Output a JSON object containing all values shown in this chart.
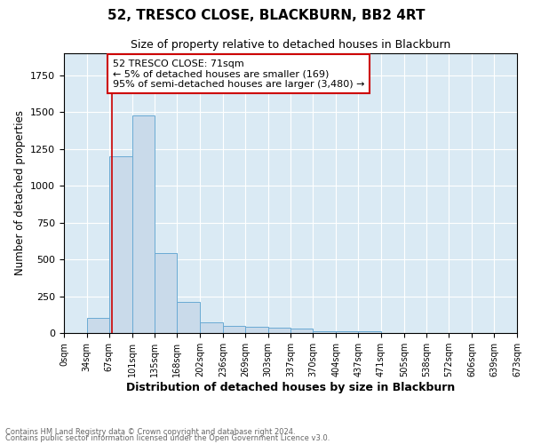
{
  "title1": "52, TRESCO CLOSE, BLACKBURN, BB2 4RT",
  "title2": "Size of property relative to detached houses in Blackburn",
  "xlabel": "Distribution of detached houses by size in Blackburn",
  "ylabel": "Number of detached properties",
  "footnote1": "Contains HM Land Registry data © Crown copyright and database right 2024.",
  "footnote2": "Contains public sector information licensed under the Open Government Licence v3.0.",
  "bar_edges": [
    0,
    34,
    67,
    101,
    135,
    168,
    202,
    236,
    269,
    303,
    337,
    370,
    404,
    437,
    471,
    505,
    538,
    572,
    606,
    639,
    673
  ],
  "bar_heights": [
    0,
    100,
    1200,
    1480,
    540,
    210,
    75,
    50,
    45,
    35,
    28,
    15,
    10,
    15,
    0,
    0,
    0,
    0,
    0,
    0
  ],
  "bar_color": "#c9daea",
  "bar_edgecolor": "#6aaad4",
  "grid_color": "#ffffff",
  "bg_color": "#daeaf4",
  "red_line_x": 71,
  "annotation_line1": "52 TRESCO CLOSE: 71sqm",
  "annotation_line2": "← 5% of detached houses are smaller (169)",
  "annotation_line3": "95% of semi-detached houses are larger (3,480) →",
  "annotation_box_color": "#ffffff",
  "annotation_border_color": "#cc0000",
  "ylim": [
    0,
    1900
  ],
  "xlim": [
    0,
    673
  ],
  "tick_labels": [
    "0sqm",
    "34sqm",
    "67sqm",
    "101sqm",
    "135sqm",
    "168sqm",
    "202sqm",
    "236sqm",
    "269sqm",
    "303sqm",
    "337sqm",
    "370sqm",
    "404sqm",
    "437sqm",
    "471sqm",
    "505sqm",
    "538sqm",
    "572sqm",
    "606sqm",
    "639sqm",
    "673sqm"
  ]
}
